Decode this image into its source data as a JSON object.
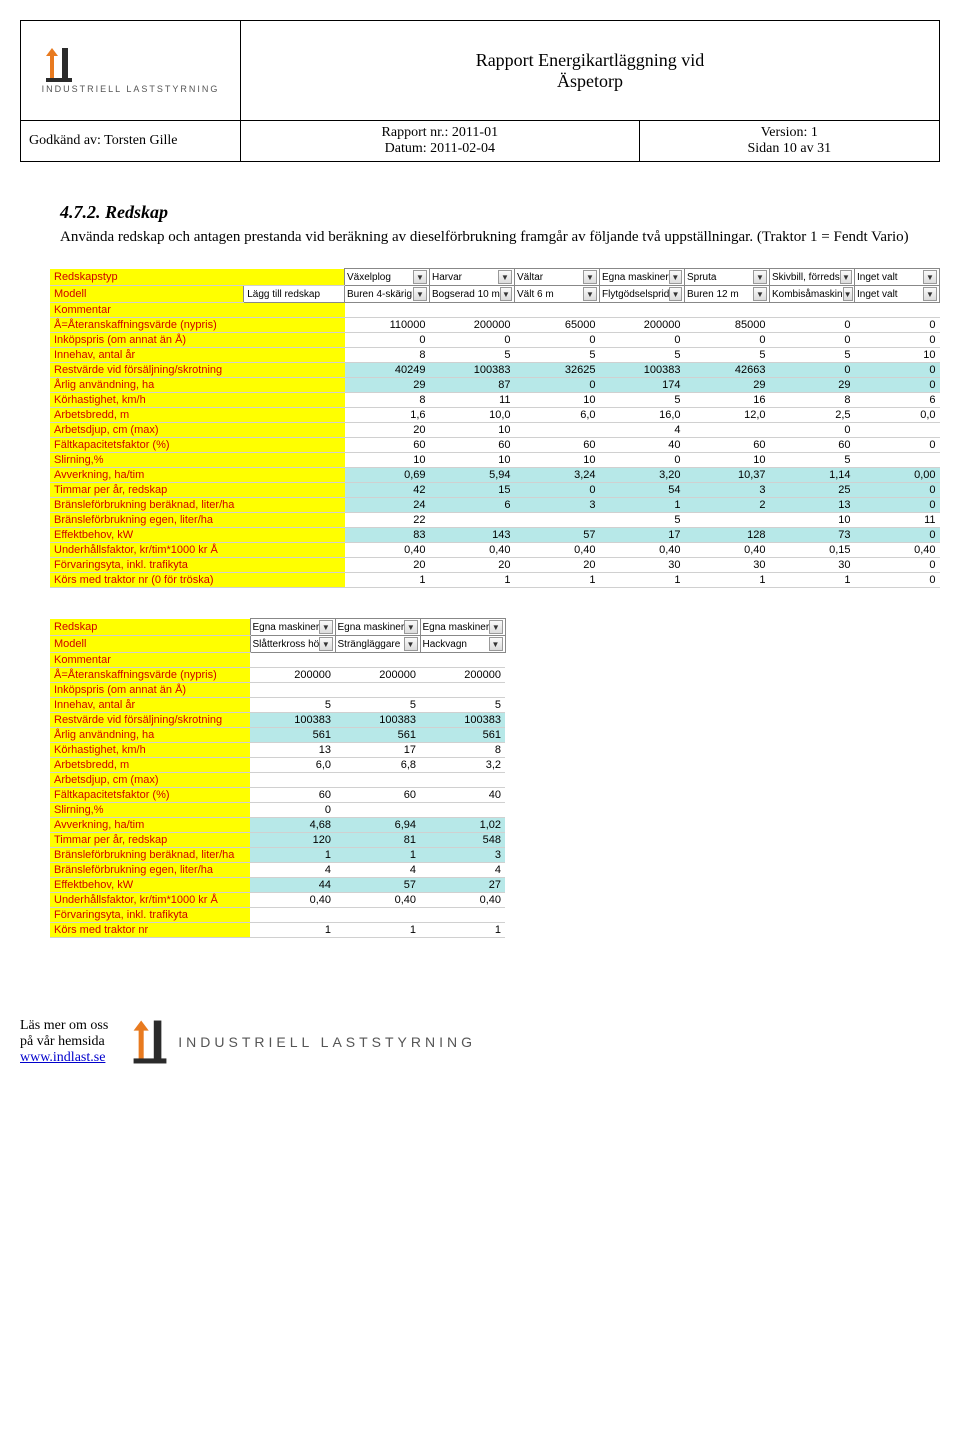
{
  "header": {
    "logo_label": "INDUSTRIELL LASTSTYRNING",
    "title_line1": "Rapport Energikartläggning vid",
    "title_line2": "Äspetorp",
    "rapport_nr_label": "Rapport nr.: 2011-01",
    "version_label": "Version: 1",
    "godkand_label": "Godkänd av: Torsten Gille",
    "datum_label": "Datum: 2011-02-04",
    "sidan_label": "Sidan 10 av 31"
  },
  "section": {
    "heading": "4.7.2. Redskap",
    "body": "Använda redskap och antagen prestanda vid beräkning av dieselförbrukning framgår av följande två uppställningar. (Traktor 1 = Fendt Vario)"
  },
  "table1": {
    "label_rows": [
      "Redskapstyp",
      "Modell",
      "Kommentar",
      "Å=Återanskaffningsvärde (nypris)",
      "Inköpspris (om annat än Å)",
      "Innehav, antal år",
      "Restvärde vid försäljning/skrotning",
      "Årlig användning, ha",
      "Körhastighet, km/h",
      "Arbetsbredd, m",
      "Arbetsdjup, cm (max)",
      "Fältkapacitetsfaktor (%)",
      "Slirning,%",
      "Avverkning, ha/tim",
      "Timmar per år, redskap",
      "Bränsleförbrukning beräknad, liter/ha",
      "Bränsleförbrukning egen, liter/ha",
      "Effektbehov, kW",
      "Underhållsfaktor, kr/tim*1000 kr Å",
      "Förvaringsyta, inkl. trafikyta",
      "Körs med traktor nr (0 för tröska)"
    ],
    "dropdown_row1": [
      "Växelplog",
      "Harvar",
      "Vältar",
      "Egna maskiner",
      "Spruta",
      "Skivbill, förreds",
      "Inget valt"
    ],
    "dropdown_row2": [
      "Buren 4-skärig",
      "Bogserad 10 m",
      "Vält 6 m",
      "Flytgödselsprid",
      "Buren 12 m",
      "Kombisåmaskin",
      "Inget valt"
    ],
    "extra_label": "Lägg till redskap",
    "data": [
      [
        "110000",
        "200000",
        "65000",
        "200000",
        "85000",
        "0",
        "0"
      ],
      [
        "0",
        "0",
        "0",
        "0",
        "0",
        "0",
        "0"
      ],
      [
        "8",
        "5",
        "5",
        "5",
        "5",
        "5",
        "10"
      ],
      [
        "40249",
        "100383",
        "32625",
        "100383",
        "42663",
        "0",
        "0"
      ],
      [
        "29",
        "87",
        "0",
        "174",
        "29",
        "29",
        "0"
      ],
      [
        "8",
        "11",
        "10",
        "5",
        "16",
        "8",
        "6"
      ],
      [
        "1,6",
        "10,0",
        "6,0",
        "16,0",
        "12,0",
        "2,5",
        "0,0"
      ],
      [
        "20",
        "10",
        "",
        "4",
        "",
        "0",
        ""
      ],
      [
        "60",
        "60",
        "60",
        "40",
        "60",
        "60",
        "0"
      ],
      [
        "10",
        "10",
        "10",
        "0",
        "10",
        "5",
        ""
      ],
      [
        "0,69",
        "5,94",
        "3,24",
        "3,20",
        "10,37",
        "1,14",
        "0,00"
      ],
      [
        "42",
        "15",
        "0",
        "54",
        "3",
        "25",
        "0"
      ],
      [
        "24",
        "6",
        "3",
        "1",
        "2",
        "13",
        "0"
      ],
      [
        "22",
        "",
        "",
        "5",
        "",
        "10",
        "11"
      ],
      [
        "83",
        "143",
        "57",
        "17",
        "128",
        "73",
        "0"
      ],
      [
        "0,40",
        "0,40",
        "0,40",
        "0,40",
        "0,40",
        "0,15",
        "0,40"
      ],
      [
        "20",
        "20",
        "20",
        "30",
        "30",
        "30",
        "0"
      ],
      [
        "1",
        "1",
        "1",
        "1",
        "1",
        "1",
        "0"
      ]
    ],
    "cyan_rows": [
      3,
      4,
      10,
      11,
      12,
      14
    ]
  },
  "table2": {
    "label_rows": [
      "Redskap",
      "Modell",
      "Kommentar",
      "Å=Återanskaffningsvärde (nypris)",
      "Inköpspris (om annat än Å)",
      "Innehav, antal år",
      "Restvärde vid försäljning/skrotning",
      "Årlig användning, ha",
      "Körhastighet, km/h",
      "Arbetsbredd, m",
      "Arbetsdjup, cm (max)",
      "Fältkapacitetsfaktor (%)",
      "Slirning,%",
      "Avverkning, ha/tim",
      "Timmar per år, redskap",
      "Bränsleförbrukning beräknad, liter/ha",
      "Bränsleförbrukning egen, liter/ha",
      "Effektbehov, kW",
      "Underhållsfaktor, kr/tim*1000 kr Å",
      "Förvaringsyta, inkl. trafikyta",
      "Körs med traktor nr"
    ],
    "dropdown_row1": [
      "Egna maskiner",
      "Egna maskiner",
      "Egna maskiner"
    ],
    "dropdown_row2": [
      "Slåtterkross hö",
      "Strängläggare",
      "Hackvagn"
    ],
    "data": [
      [
        "200000",
        "200000",
        "200000"
      ],
      [
        "",
        "",
        ""
      ],
      [
        "5",
        "5",
        "5"
      ],
      [
        "100383",
        "100383",
        "100383"
      ],
      [
        "561",
        "561",
        "561"
      ],
      [
        "13",
        "17",
        "8"
      ],
      [
        "6,0",
        "6,8",
        "3,2"
      ],
      [
        "",
        "",
        ""
      ],
      [
        "60",
        "60",
        "40"
      ],
      [
        "0",
        "",
        ""
      ],
      [
        "4,68",
        "6,94",
        "1,02"
      ],
      [
        "120",
        "81",
        "548"
      ],
      [
        "1",
        "1",
        "3"
      ],
      [
        "4",
        "4",
        "4"
      ],
      [
        "44",
        "57",
        "27"
      ],
      [
        "0,40",
        "0,40",
        "0,40"
      ],
      [
        "",
        "",
        ""
      ],
      [
        "1",
        "1",
        "1"
      ]
    ],
    "cyan_rows": [
      3,
      4,
      10,
      11,
      12,
      14
    ]
  },
  "footer": {
    "line1": "Läs mer om oss",
    "line2": "på vår hemsida",
    "link": "www.indlast.se",
    "logo_label": "INDUSTRIELL LASTSTYRNING"
  },
  "colors": {
    "yellow": "#ffff00",
    "red_text": "#d00000",
    "cyan": "#b7e8e8",
    "orange": "#e87a1f",
    "dark": "#2b2b2b"
  }
}
